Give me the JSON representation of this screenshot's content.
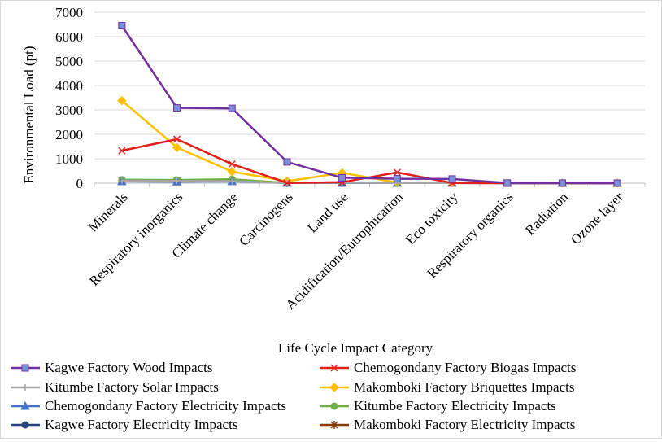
{
  "chart_data": {
    "type": "line",
    "title": "",
    "xlabel": "Life Cycle Impact Category",
    "ylabel": "Environmental Load (pt)",
    "ylim": [
      0,
      7000
    ],
    "yticks": [
      0,
      1000,
      2000,
      3000,
      4000,
      5000,
      6000,
      7000
    ],
    "grid": true,
    "legend_position": "bottom",
    "categories": [
      "Minerals",
      "Respiratory inorganics",
      "Climate change",
      "Carcinogens",
      "Land use",
      "Acidification/Eutrophication",
      "Eco toxicity",
      "Respiratory organics",
      "Radiation",
      "Ozone layer"
    ],
    "series": [
      {
        "name": "Kagwe Factory Wood Impacts",
        "color": "#7030a0",
        "marker": "square",
        "marker_fill": "#7a8fd6",
        "values": [
          6450,
          3080,
          3060,
          870,
          220,
          180,
          170,
          5,
          2,
          1
        ]
      },
      {
        "name": "Chemogondany Factory Biogas Impacts",
        "color": "#e0201b",
        "marker": "x",
        "marker_fill": "#e0201b",
        "values": [
          1330,
          1800,
          780,
          10,
          40,
          440,
          5,
          2,
          1,
          0
        ]
      },
      {
        "name": "Kitumbe Factory Solar Impacts",
        "color": "#a6a6a6",
        "marker": "plus",
        "marker_fill": "#a6a6a6",
        "values": [
          100,
          90,
          80,
          10,
          20,
          10,
          5,
          2,
          1,
          0
        ]
      },
      {
        "name": "Makomboki Factory Briquettes Impacts",
        "color": "#ffc000",
        "marker": "diamond",
        "marker_fill": "#ffc000",
        "values": [
          3380,
          1460,
          470,
          80,
          420,
          30,
          10,
          2,
          1,
          0
        ]
      },
      {
        "name": "Chemogondany Factory Electricity Impacts",
        "color": "#4472c4",
        "marker": "triangle",
        "marker_fill": "#4472c4",
        "values": [
          70,
          60,
          70,
          5,
          5,
          5,
          5,
          2,
          1,
          0
        ]
      },
      {
        "name": "Kitumbe Factory Electricity Impacts",
        "color": "#70ad47",
        "marker": "circle",
        "marker_fill": "#70ad47",
        "values": [
          140,
          130,
          160,
          10,
          10,
          10,
          5,
          2,
          1,
          0
        ]
      },
      {
        "name": "Kagwe Factory Electricity Impacts",
        "color": "#264478",
        "marker": "circle",
        "marker_fill": "#264478",
        "values": [
          90,
          80,
          100,
          10,
          10,
          10,
          5,
          2,
          1,
          0
        ]
      },
      {
        "name": "Makomboki Factory Electricity Impacts",
        "color": "#843c0c",
        "marker": "star",
        "marker_fill": "#843c0c",
        "values": [
          100,
          90,
          120,
          10,
          10,
          10,
          5,
          2,
          1,
          0
        ]
      }
    ]
  }
}
